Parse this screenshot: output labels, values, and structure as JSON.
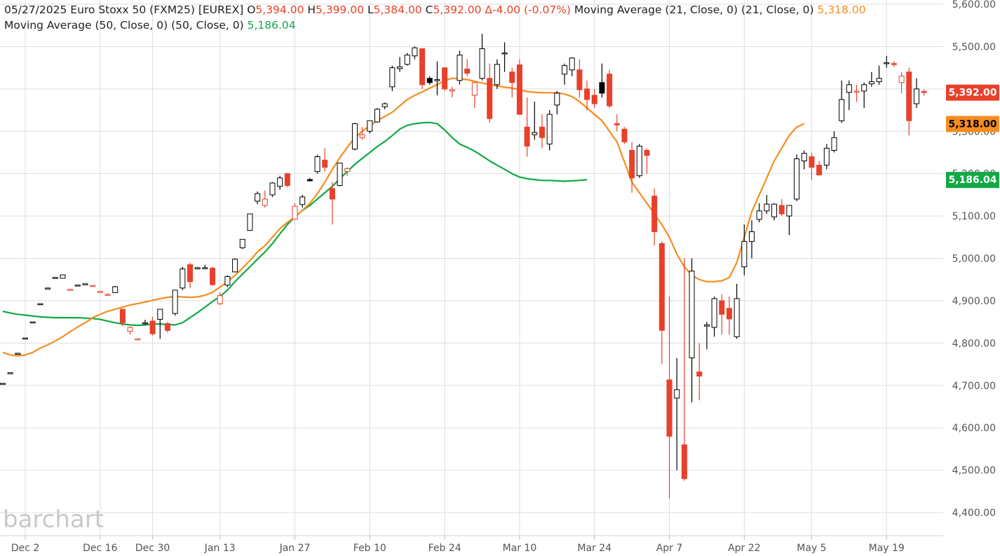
{
  "header": {
    "date": "05/27/2025",
    "instrument": "Euro Stoxx 50 (FXM25) [EUREX]",
    "open_label": "O",
    "open_value": "5,394.00",
    "high_label": "H",
    "high_value": "5,399.00",
    "low_label": "L",
    "low_value": "5,384.00",
    "close_label": "C",
    "close_value": "5,392.00",
    "change": "Δ-4.00 (-0.07%)",
    "ma21_label": "Moving Average (21, Close, 0)",
    "ma21_params": "(21, Close, 0)",
    "ma21_value": "5,318.00",
    "ma50_label": "Moving Average (50, Close, 0)",
    "ma50_params": "(50, Close, 0)",
    "ma50_value": "5,186.04"
  },
  "logo": "barchart",
  "colors": {
    "up": "#000000",
    "down": "#e8402a",
    "ma21": "#f58d1f",
    "ma50": "#11a944",
    "grid": "#dddddd"
  },
  "chart_data": {
    "type": "candlestick",
    "y_ticks": [
      "5,600.00",
      "5,500.00",
      "5,400.00",
      "5,300.00",
      "5,200.00",
      "5,100.00",
      "5,000.00",
      "4,900.00",
      "4,800.00",
      "4,700.00",
      "4,600.00",
      "4,500.00",
      "4,400.00"
    ],
    "ylim": [
      4370,
      5610
    ],
    "x_ticks": [
      "Dec 2",
      "Dec 16",
      "Dec 30",
      "Jan 13",
      "Jan 27",
      "Feb 10",
      "Feb 24",
      "Mar 10",
      "Mar 24",
      "Apr 7",
      "Apr 22",
      "May 5",
      "May 19"
    ],
    "x_tick_index": [
      3,
      13,
      20,
      29,
      39,
      49,
      59,
      69,
      79,
      89,
      99,
      108,
      118
    ],
    "grid": true,
    "last_price_badges": [
      {
        "label": "5,392.00",
        "value": 5392,
        "color": "#e8402a"
      },
      {
        "label": "5,318.00",
        "value": 5318,
        "color": "#f58d1f"
      },
      {
        "label": "5,186.04",
        "value": 5186,
        "color": "#11a944"
      }
    ],
    "candles": [
      {
        "o": 4705,
        "h": 4705,
        "l": 4705,
        "c": 4705
      },
      {
        "o": 4730,
        "h": 4730,
        "l": 4730,
        "c": 4730
      },
      {
        "o": 4776,
        "h": 4776,
        "l": 4776,
        "c": 4776
      },
      {
        "o": 4812,
        "h": 4812,
        "l": 4812,
        "c": 4812
      },
      {
        "o": 4850,
        "h": 4850,
        "l": 4850,
        "c": 4850
      },
      {
        "o": 4893,
        "h": 4893,
        "l": 4893,
        "c": 4893
      },
      {
        "o": 4930,
        "h": 4930,
        "l": 4930,
        "c": 4930
      },
      {
        "o": 4955,
        "h": 4955,
        "l": 4955,
        "c": 4955
      },
      {
        "o": 4953,
        "h": 4962,
        "l": 4953,
        "c": 4961
      },
      {
        "o": 4927,
        "h": 4927,
        "l": 4927,
        "c": 4927
      },
      {
        "o": 4937,
        "h": 4937,
        "l": 4937,
        "c": 4937
      },
      {
        "o": 4940,
        "h": 4940,
        "l": 4940,
        "c": 4940
      },
      {
        "o": 4936,
        "h": 4936,
        "l": 4936,
        "c": 4936
      },
      {
        "o": 4922,
        "h": 4922,
        "l": 4922,
        "c": 4922
      },
      {
        "o": 4915,
        "h": 4918,
        "l": 4912,
        "c": 4915
      },
      {
        "o": 4919,
        "h": 4935,
        "l": 4919,
        "c": 4933
      },
      {
        "o": 4880,
        "h": 4880,
        "l": 4840,
        "c": 4848
      },
      {
        "o": 4828,
        "h": 4840,
        "l": 4820,
        "c": 4837
      },
      {
        "o": 4810,
        "h": 4810,
        "l": 4810,
        "c": 4810
      },
      {
        "o": 4846,
        "h": 4855,
        "l": 4843,
        "c": 4848
      },
      {
        "o": 4852,
        "h": 4862,
        "l": 4818,
        "c": 4822
      },
      {
        "o": 4856,
        "h": 4875,
        "l": 4810,
        "c": 4880
      },
      {
        "o": 4846,
        "h": 4850,
        "l": 4825,
        "c": 4830
      },
      {
        "o": 4870,
        "h": 4925,
        "l": 4865,
        "c": 4925
      },
      {
        "o": 4930,
        "h": 4980,
        "l": 4925,
        "c": 4975
      },
      {
        "o": 4985,
        "h": 4990,
        "l": 4930,
        "c": 4945
      },
      {
        "o": 4975,
        "h": 4980,
        "l": 4975,
        "c": 4978
      },
      {
        "o": 4977,
        "h": 4985,
        "l": 4975,
        "c": 4978
      },
      {
        "o": 4977,
        "h": 4980,
        "l": 4935,
        "c": 4938
      },
      {
        "o": 4893,
        "h": 4920,
        "l": 4890,
        "c": 4912
      },
      {
        "o": 4937,
        "h": 4960,
        "l": 4932,
        "c": 4957
      },
      {
        "o": 4968,
        "h": 5000,
        "l": 4967,
        "c": 4998
      },
      {
        "o": 5025,
        "h": 5045,
        "l": 5022,
        "c": 5045
      },
      {
        "o": 5066,
        "h": 5105,
        "l": 5065,
        "c": 5105
      },
      {
        "o": 5135,
        "h": 5158,
        "l": 5128,
        "c": 5153
      },
      {
        "o": 5125,
        "h": 5160,
        "l": 5120,
        "c": 5140
      },
      {
        "o": 5150,
        "h": 5180,
        "l": 5145,
        "c": 5178
      },
      {
        "o": 5170,
        "h": 5195,
        "l": 5162,
        "c": 5190
      },
      {
        "o": 5200,
        "h": 5200,
        "l": 5168,
        "c": 5172
      },
      {
        "o": 5092,
        "h": 5130,
        "l": 5092,
        "c": 5123
      },
      {
        "o": 5127,
        "h": 5150,
        "l": 5120,
        "c": 5145
      },
      {
        "o": 5186,
        "h": 5190,
        "l": 5182,
        "c": 5183
      },
      {
        "o": 5205,
        "h": 5245,
        "l": 5200,
        "c": 5240
      },
      {
        "o": 5232,
        "h": 5260,
        "l": 5205,
        "c": 5215
      },
      {
        "o": 5165,
        "h": 5180,
        "l": 5080,
        "c": 5140
      },
      {
        "o": 5172,
        "h": 5225,
        "l": 5170,
        "c": 5225
      },
      {
        "o": 5205,
        "h": 5215,
        "l": 5195,
        "c": 5212
      },
      {
        "o": 5258,
        "h": 5320,
        "l": 5255,
        "c": 5318
      },
      {
        "o": 5285,
        "h": 5310,
        "l": 5280,
        "c": 5292
      },
      {
        "o": 5300,
        "h": 5325,
        "l": 5295,
        "c": 5325
      },
      {
        "o": 5322,
        "h": 5355,
        "l": 5320,
        "c": 5352
      },
      {
        "o": 5358,
        "h": 5368,
        "l": 5352,
        "c": 5365
      },
      {
        "o": 5405,
        "h": 5455,
        "l": 5395,
        "c": 5450
      },
      {
        "o": 5448,
        "h": 5475,
        "l": 5440,
        "c": 5452
      },
      {
        "o": 5458,
        "h": 5485,
        "l": 5455,
        "c": 5480
      },
      {
        "o": 5478,
        "h": 5500,
        "l": 5470,
        "c": 5497
      },
      {
        "o": 5495,
        "h": 5495,
        "l": 5400,
        "c": 5410
      },
      {
        "o": 5425,
        "h": 5430,
        "l": 5410,
        "c": 5415
      },
      {
        "o": 5420,
        "h": 5465,
        "l": 5385,
        "c": 5422
      },
      {
        "o": 5450,
        "h": 5450,
        "l": 5395,
        "c": 5400
      },
      {
        "o": 5395,
        "h": 5405,
        "l": 5380,
        "c": 5398
      },
      {
        "o": 5420,
        "h": 5490,
        "l": 5410,
        "c": 5480
      },
      {
        "o": 5447,
        "h": 5470,
        "l": 5430,
        "c": 5437
      },
      {
        "o": 5385,
        "h": 5410,
        "l": 5355,
        "c": 5415
      },
      {
        "o": 5425,
        "h": 5530,
        "l": 5420,
        "c": 5495
      },
      {
        "o": 5425,
        "h": 5460,
        "l": 5320,
        "c": 5330
      },
      {
        "o": 5410,
        "h": 5470,
        "l": 5400,
        "c": 5458
      },
      {
        "o": 5485,
        "h": 5510,
        "l": 5440,
        "c": 5485
      },
      {
        "o": 5440,
        "h": 5450,
        "l": 5380,
        "c": 5415
      },
      {
        "o": 5457,
        "h": 5470,
        "l": 5340,
        "c": 5340
      },
      {
        "o": 5310,
        "h": 5380,
        "l": 5240,
        "c": 5265
      },
      {
        "o": 5292,
        "h": 5370,
        "l": 5280,
        "c": 5297
      },
      {
        "o": 5310,
        "h": 5340,
        "l": 5260,
        "c": 5285
      },
      {
        "o": 5270,
        "h": 5350,
        "l": 5255,
        "c": 5340
      },
      {
        "o": 5362,
        "h": 5395,
        "l": 5340,
        "c": 5390
      },
      {
        "o": 5435,
        "h": 5460,
        "l": 5410,
        "c": 5455
      },
      {
        "o": 5445,
        "h": 5475,
        "l": 5430,
        "c": 5473
      },
      {
        "o": 5445,
        "h": 5470,
        "l": 5380,
        "c": 5398
      },
      {
        "o": 5400,
        "h": 5420,
        "l": 5350,
        "c": 5375
      },
      {
        "o": 5385,
        "h": 5400,
        "l": 5355,
        "c": 5365
      },
      {
        "o": 5415,
        "h": 5460,
        "l": 5380,
        "c": 5390
      },
      {
        "o": 5435,
        "h": 5445,
        "l": 5355,
        "c": 5360
      },
      {
        "o": 5318,
        "h": 5340,
        "l": 5300,
        "c": 5315
      },
      {
        "o": 5305,
        "h": 5310,
        "l": 5270,
        "c": 5275
      },
      {
        "o": 5255,
        "h": 5275,
        "l": 5155,
        "c": 5190
      },
      {
        "o": 5195,
        "h": 5270,
        "l": 5190,
        "c": 5265
      },
      {
        "o": 5255,
        "h": 5260,
        "l": 5200,
        "c": 5243
      },
      {
        "o": 5147,
        "h": 5165,
        "l": 5030,
        "c": 5063
      },
      {
        "o": 5035,
        "h": 5040,
        "l": 4750,
        "c": 4830
      },
      {
        "o": 4713,
        "h": 4910,
        "l": 4433,
        "c": 4580
      },
      {
        "o": 4670,
        "h": 4765,
        "l": 4500,
        "c": 4690
      },
      {
        "o": 4560,
        "h": 5000,
        "l": 4475,
        "c": 4480
      },
      {
        "o": 4765,
        "h": 5000,
        "l": 4660,
        "c": 4970
      },
      {
        "o": 4732,
        "h": 4800,
        "l": 4665,
        "c": 4722
      },
      {
        "o": 4840,
        "h": 4850,
        "l": 4785,
        "c": 4843
      },
      {
        "o": 4837,
        "h": 4910,
        "l": 4815,
        "c": 4905
      },
      {
        "o": 4900,
        "h": 4915,
        "l": 4820,
        "c": 4868
      },
      {
        "o": 4882,
        "h": 4910,
        "l": 4820,
        "c": 4857
      },
      {
        "o": 4815,
        "h": 4940,
        "l": 4810,
        "c": 4905
      },
      {
        "o": 4980,
        "h": 5080,
        "l": 4960,
        "c": 5040
      },
      {
        "o": 5040,
        "h": 5090,
        "l": 5000,
        "c": 5063
      },
      {
        "o": 5092,
        "h": 5130,
        "l": 5085,
        "c": 5112
      },
      {
        "o": 5112,
        "h": 5150,
        "l": 5105,
        "c": 5128
      },
      {
        "o": 5098,
        "h": 5130,
        "l": 5090,
        "c": 5128
      },
      {
        "o": 5125,
        "h": 5140,
        "l": 5100,
        "c": 5105
      },
      {
        "o": 5100,
        "h": 5120,
        "l": 5055,
        "c": 5125
      },
      {
        "o": 5140,
        "h": 5245,
        "l": 5135,
        "c": 5235
      },
      {
        "o": 5230,
        "h": 5255,
        "l": 5210,
        "c": 5248
      },
      {
        "o": 5240,
        "h": 5250,
        "l": 5185,
        "c": 5215
      },
      {
        "o": 5220,
        "h": 5230,
        "l": 5195,
        "c": 5197
      },
      {
        "o": 5220,
        "h": 5270,
        "l": 5210,
        "c": 5260
      },
      {
        "o": 5255,
        "h": 5300,
        "l": 5250,
        "c": 5285
      },
      {
        "o": 5325,
        "h": 5420,
        "l": 5320,
        "c": 5375
      },
      {
        "o": 5392,
        "h": 5420,
        "l": 5350,
        "c": 5410
      },
      {
        "o": 5393,
        "h": 5410,
        "l": 5370,
        "c": 5395
      },
      {
        "o": 5395,
        "h": 5415,
        "l": 5355,
        "c": 5410
      },
      {
        "o": 5412,
        "h": 5440,
        "l": 5405,
        "c": 5417
      },
      {
        "o": 5417,
        "h": 5455,
        "l": 5410,
        "c": 5425
      },
      {
        "o": 5460,
        "h": 5478,
        "l": 5450,
        "c": 5462
      },
      {
        "o": 5460,
        "h": 5465,
        "l": 5452,
        "c": 5458
      },
      {
        "o": 5415,
        "h": 5440,
        "l": 5390,
        "c": 5430
      },
      {
        "o": 5440,
        "h": 5450,
        "l": 5290,
        "c": 5325
      },
      {
        "o": 5365,
        "h": 5425,
        "l": 5355,
        "c": 5400
      },
      {
        "o": 5394,
        "h": 5399,
        "l": 5384,
        "c": 5392
      }
    ],
    "ma21": [
      4778,
      4772,
      4770,
      4772,
      4778,
      4788,
      4796,
      4805,
      4815,
      4827,
      4838,
      4848,
      4860,
      4868,
      4875,
      4880,
      4885,
      4890,
      4893,
      4897,
      4901,
      4905,
      4908,
      4910,
      4909,
      4908,
      4909,
      4913,
      4920,
      4932,
      4945,
      4960,
      4977,
      4995,
      5015,
      5030,
      5050,
      5070,
      5085,
      5098,
      5113,
      5130,
      5153,
      5180,
      5210,
      5238,
      5262,
      5285,
      5300,
      5313,
      5325,
      5335,
      5345,
      5360,
      5375,
      5385,
      5393,
      5402,
      5410,
      5420,
      5425,
      5424,
      5422,
      5418,
      5414,
      5410,
      5407,
      5404,
      5402,
      5398,
      5394,
      5392,
      5391,
      5391,
      5391,
      5388,
      5382,
      5370,
      5355,
      5340,
      5325,
      5300,
      5275,
      5228,
      5180,
      5155,
      5130,
      5105,
      5080,
      5050,
      5010,
      4980,
      4960,
      4950,
      4945,
      4945,
      4947,
      4955,
      4990,
      5050,
      5110,
      5150,
      5190,
      5230,
      5260,
      5290,
      5310,
      5318
    ],
    "ma50": [
      4875,
      4871,
      4868,
      4866,
      4864,
      4862,
      4861,
      4860,
      4860,
      4860,
      4860,
      4859,
      4858,
      4856,
      4852,
      4848,
      4845,
      4843,
      4842,
      4843,
      4845,
      4845,
      4844,
      4843,
      4848,
      4860,
      4872,
      4885,
      4898,
      4910,
      4925,
      4945,
      4963,
      4980,
      4998,
      5015,
      5035,
      5058,
      5080,
      5098,
      5113,
      5125,
      5140,
      5155,
      5170,
      5188,
      5205,
      5222,
      5236,
      5250,
      5264,
      5276,
      5290,
      5305,
      5314,
      5318,
      5320,
      5321,
      5318,
      5303,
      5285,
      5270,
      5262,
      5253,
      5242,
      5230,
      5220,
      5210,
      5200,
      5192,
      5188,
      5186,
      5184,
      5184,
      5183,
      5182,
      5183,
      5184,
      5186
    ]
  }
}
